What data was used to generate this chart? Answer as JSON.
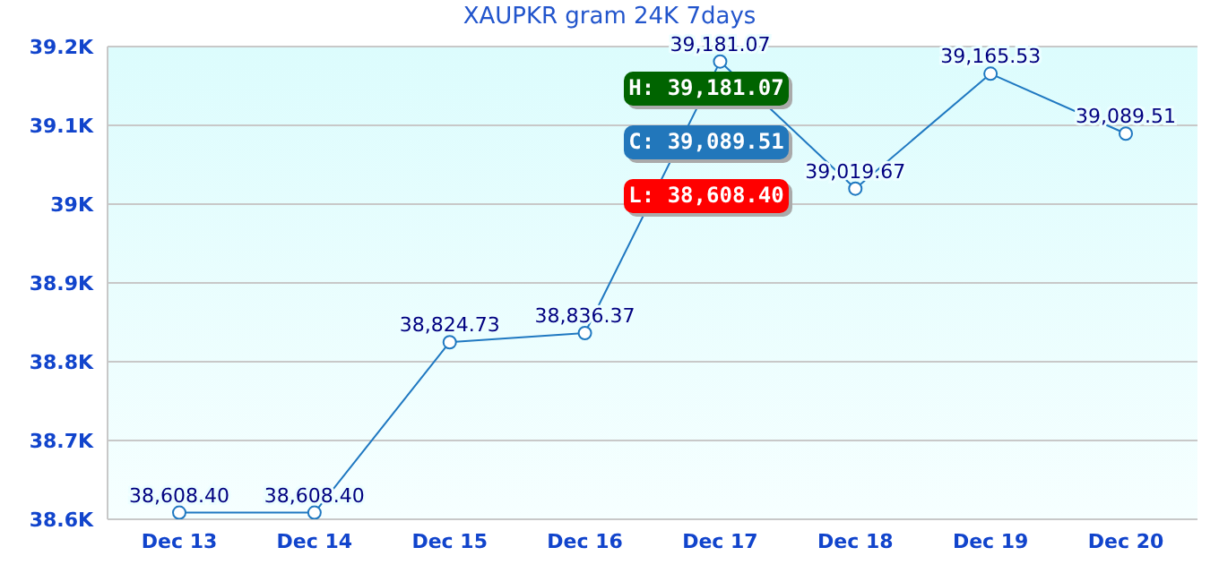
{
  "chart_data": {
    "type": "line",
    "title": "XAUPKR gram 24K 7days",
    "categories": [
      "Dec 13",
      "Dec 14",
      "Dec 15",
      "Dec 16",
      "Dec 17",
      "Dec 18",
      "Dec 19",
      "Dec 20"
    ],
    "series": [
      {
        "color": "#1f78c1",
        "values": [
          38608.4,
          38608.4,
          38824.73,
          38836.37,
          39181.07,
          39019.67,
          39165.53,
          39089.51
        ],
        "value_labels": [
          "38,608.40",
          "38,608.40",
          "38,824.73",
          "38,836.37",
          "39,181.07",
          "39,019.67",
          "39,165.53",
          "39,089.51"
        ]
      }
    ],
    "ylim": [
      38600,
      39200
    ],
    "yticks": [
      {
        "value": 38600,
        "label": "38.6K"
      },
      {
        "value": 38700,
        "label": "38.7K"
      },
      {
        "value": 38800,
        "label": "38.8K"
      },
      {
        "value": 38900,
        "label": "38.9K"
      },
      {
        "value": 39000,
        "label": "39K"
      },
      {
        "value": 39100,
        "label": "39.1K"
      },
      {
        "value": 39200,
        "label": "39.2K"
      }
    ],
    "grid": "y",
    "marker": "circle",
    "line_style": "solid",
    "legend": false,
    "annotations": [
      "H: 39,181.07",
      "C: 39,089.51",
      "L: 38,608.40"
    ]
  }
}
